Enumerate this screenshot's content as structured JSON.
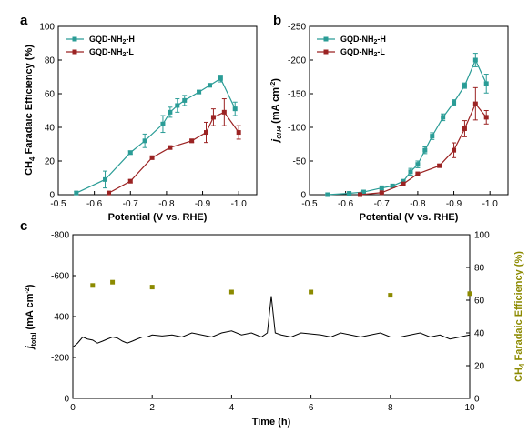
{
  "colors": {
    "series_h": "#2a9c96",
    "series_l": "#9b2323",
    "trace": "#000000",
    "fe_points": "#8c8a00",
    "right_axis": "#8c8a00"
  },
  "chart_data": [
    {
      "panel": "a",
      "type": "line",
      "xlabel": "Potential (V vs. RHE)",
      "ylabel": "CH4 Faradaic Efficiency (%)",
      "xlim": [
        -0.5,
        -1.05
      ],
      "ylim": [
        0,
        100
      ],
      "xticks": [
        -0.5,
        -0.6,
        -0.7,
        -0.8,
        -0.9,
        -1.0
      ],
      "xtick_labels": [
        "-0.5",
        "-0.6",
        "-0.7",
        "-0.8",
        "-0.9",
        "-1.0"
      ],
      "yticks": [
        0,
        20,
        40,
        60,
        80,
        100
      ],
      "ytick_labels": [
        "0",
        "20",
        "40",
        "60",
        "80",
        "100"
      ],
      "legend_position": "top-left",
      "series": [
        {
          "name": "GQD-NH2-H",
          "marker": "square",
          "x": [
            -0.55,
            -0.63,
            -0.7,
            -0.74,
            -0.79,
            -0.81,
            -0.83,
            -0.85,
            -0.89,
            -0.92,
            -0.95,
            -0.99
          ],
          "y": [
            1,
            9,
            25,
            32,
            42,
            49,
            53,
            56,
            61,
            65,
            69,
            51
          ],
          "yerr": [
            1,
            5,
            1,
            4,
            5,
            3,
            4,
            3,
            1,
            1,
            2,
            4
          ]
        },
        {
          "name": "GQD-NH2-L",
          "marker": "square",
          "x": [
            -0.64,
            -0.7,
            -0.76,
            -0.81,
            -0.87,
            -0.91,
            -0.93,
            -0.96,
            -1.0
          ],
          "y": [
            1,
            8,
            22,
            28,
            32,
            37,
            46,
            49,
            37
          ],
          "yerr": [
            1,
            1,
            1,
            1,
            1,
            6,
            5,
            8,
            4
          ]
        }
      ]
    },
    {
      "panel": "b",
      "type": "line",
      "xlabel": "Potential (V vs. RHE)",
      "ylabel": "j (mA cm-2)",
      "ylabel_sub": "CH4",
      "xlim": [
        -0.5,
        -1.05
      ],
      "ylim": [
        0,
        -250
      ],
      "xticks": [
        -0.5,
        -0.6,
        -0.7,
        -0.8,
        -0.9,
        -1.0
      ],
      "xtick_labels": [
        "-0.5",
        "-0.6",
        "-0.7",
        "-0.8",
        "-0.9",
        "-1.0"
      ],
      "yticks": [
        0,
        -50,
        -100,
        -150,
        -200,
        -250
      ],
      "ytick_labels": [
        "0",
        "-50",
        "-100",
        "-150",
        "-200",
        "-250"
      ],
      "legend_position": "top-left",
      "series": [
        {
          "name": "GQD-NH2-H",
          "marker": "square",
          "x": [
            -0.55,
            -0.61,
            -0.65,
            -0.7,
            -0.73,
            -0.76,
            -0.78,
            -0.8,
            -0.82,
            -0.84,
            -0.87,
            -0.9,
            -0.93,
            -0.96,
            -0.99
          ],
          "y": [
            0,
            -2,
            -4,
            -10,
            -13,
            -20,
            -34,
            -45,
            -66,
            -87,
            -115,
            -137,
            -162,
            -200,
            -165
          ],
          "yerr": [
            0,
            1,
            1,
            3,
            2,
            2,
            5,
            5,
            5,
            5,
            5,
            4,
            4,
            10,
            14
          ]
        },
        {
          "name": "GQD-NH2-L",
          "marker": "square",
          "x": [
            -0.64,
            -0.7,
            -0.76,
            -0.8,
            -0.86,
            -0.9,
            -0.93,
            -0.96,
            -0.99
          ],
          "y": [
            0,
            -3,
            -16,
            -31,
            -43,
            -66,
            -98,
            -135,
            -115
          ],
          "yerr": [
            0,
            1,
            1,
            1,
            2,
            11,
            12,
            24,
            10
          ]
        }
      ]
    },
    {
      "panel": "c",
      "type": "line",
      "xlabel": "Time (h)",
      "ylabel": "j (mA cm-2)",
      "ylabel_sub": "total",
      "ylabel_right": "CH4 Faradaic Efficiency (%)",
      "xlim": [
        0,
        10
      ],
      "ylim": [
        0,
        -800
      ],
      "ylim_right": [
        0,
        100
      ],
      "xticks": [
        0,
        2,
        4,
        6,
        8,
        10
      ],
      "xtick_labels": [
        "0",
        "2",
        "4",
        "6",
        "8",
        "10"
      ],
      "yticks": [
        0,
        -200,
        -400,
        -600,
        -800
      ],
      "ytick_labels": [
        "0",
        "-200",
        "-400",
        "-600",
        "-800"
      ],
      "yticks_right": [
        0,
        20,
        40,
        60,
        80,
        100
      ],
      "ytick_labels_right": [
        "0",
        "20",
        "40",
        "60",
        "80",
        "100"
      ],
      "series": [
        {
          "name": "total current density",
          "axis": "left",
          "x": [
            0,
            0.12,
            0.25,
            0.37,
            0.5,
            0.62,
            0.75,
            0.87,
            1.0,
            1.12,
            1.25,
            1.37,
            1.5,
            1.62,
            1.75,
            1.87,
            2.0,
            2.25,
            2.5,
            2.75,
            3.0,
            3.25,
            3.5,
            3.75,
            4.0,
            4.25,
            4.5,
            4.75,
            4.9,
            5.0,
            5.1,
            5.25,
            5.5,
            5.75,
            6.0,
            6.25,
            6.5,
            6.75,
            7.0,
            7.25,
            7.5,
            7.75,
            8.0,
            8.25,
            8.5,
            8.75,
            9.0,
            9.25,
            9.5,
            9.75,
            10.0
          ],
          "y": [
            -250,
            -270,
            -300,
            -290,
            -285,
            -270,
            -280,
            -290,
            -300,
            -295,
            -280,
            -270,
            -280,
            -290,
            -300,
            -300,
            -310,
            -305,
            -310,
            -300,
            -320,
            -310,
            -300,
            -320,
            -330,
            -310,
            -320,
            -300,
            -320,
            -500,
            -320,
            -310,
            -300,
            -320,
            -315,
            -310,
            -300,
            -320,
            -310,
            -300,
            -310,
            -320,
            -300,
            -300,
            -310,
            -320,
            -300,
            -310,
            -290,
            -300,
            -310
          ]
        },
        {
          "name": "CH4 Faradaic Efficiency",
          "axis": "right",
          "marker": "square",
          "x": [
            0.5,
            1.0,
            2.0,
            4.0,
            6.0,
            8.0,
            10.0
          ],
          "y": [
            69,
            71,
            68,
            65,
            65,
            63,
            64
          ]
        }
      ]
    }
  ]
}
